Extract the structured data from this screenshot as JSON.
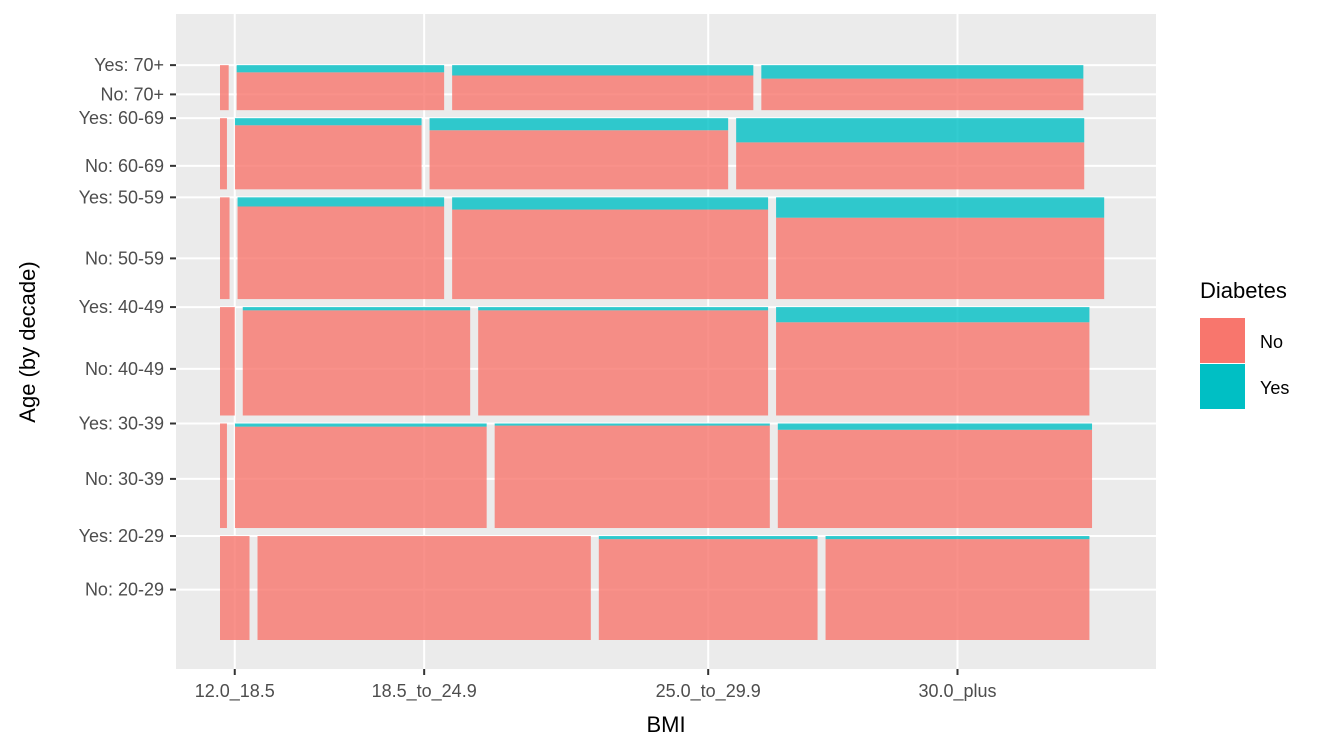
{
  "chart_data": {
    "type": "mosaic",
    "xlabel": "BMI",
    "ylabel": "Age (by decade)",
    "x_tick_labels": [
      "12.0_18.5",
      "18.5_to_24.9",
      "25.0_to_29.9",
      "30.0_plus"
    ],
    "y_tick_labels": [
      "No: 20-29",
      "Yes: 20-29",
      "No: 30-39",
      "Yes: 30-39",
      "No: 40-49",
      "Yes: 40-49",
      "No: 50-59",
      "Yes: 50-59",
      "No: 60-69",
      "Yes: 60-69",
      "No: 70+",
      "Yes: 70+"
    ],
    "legend": {
      "title": "Diabetes",
      "entries": [
        {
          "name": "No",
          "color": "#F8766D"
        },
        {
          "name": "Yes",
          "color": "#00BFC4"
        }
      ],
      "placement": "right"
    },
    "age_groups": [
      "20-29",
      "30-39",
      "40-49",
      "50-59",
      "60-69",
      "70+"
    ],
    "age_proportion": [
      0.187,
      0.188,
      0.195,
      0.183,
      0.128,
      0.081
    ],
    "bmi_proportions_by_age": {
      "20-29": [
        0.034,
        0.384,
        0.252,
        0.304
      ],
      "30-39": [
        0.008,
        0.29,
        0.317,
        0.362
      ],
      "40-49": [
        0.017,
        0.262,
        0.334,
        0.361
      ],
      "50-59": [
        0.011,
        0.238,
        0.364,
        0.378
      ],
      "60-69": [
        0.008,
        0.215,
        0.344,
        0.401
      ],
      "70+": [
        0.01,
        0.239,
        0.347,
        0.371
      ]
    },
    "diabetes_yes_share": {
      "20-29": [
        0.0,
        0.0,
        0.03,
        0.03
      ],
      "30-39": [
        0.0,
        0.03,
        0.02,
        0.06
      ],
      "40-49": [
        0.0,
        0.03,
        0.03,
        0.14
      ],
      "50-59": [
        0.0,
        0.09,
        0.12,
        0.2
      ],
      "60-69": [
        0.0,
        0.1,
        0.17,
        0.34
      ],
      "70+": [
        0.0,
        0.16,
        0.23,
        0.3
      ]
    },
    "grid": true
  }
}
